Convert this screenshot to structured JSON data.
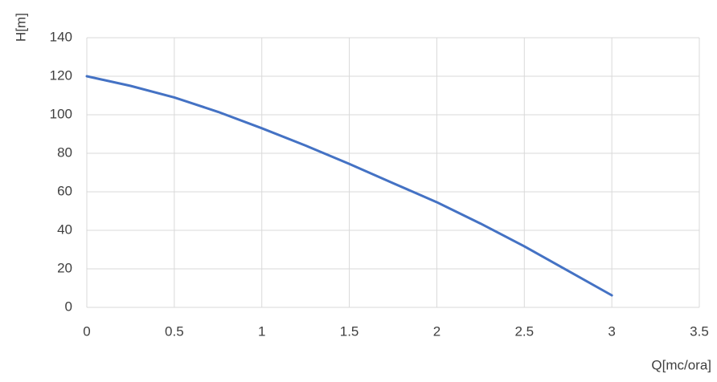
{
  "chart_data": {
    "type": "line",
    "y_label": "H[m]",
    "x_label": "Q[mc/ora]",
    "x": [
      0,
      0.25,
      0.5,
      0.75,
      1,
      1.25,
      1.5,
      1.75,
      2,
      2.25,
      2.5,
      2.75,
      3
    ],
    "series": [
      {
        "name": "H",
        "color": "#4472c4",
        "values": [
          120,
          115,
          109,
          101.5,
          93,
          84,
          74.5,
          64.5,
          54.6,
          43.5,
          31.7,
          19,
          6.25
        ]
      }
    ],
    "xlim": [
      0,
      3.5
    ],
    "xticks": [
      0,
      0.5,
      1,
      1.5,
      2,
      2.5,
      3,
      3.5
    ],
    "ylim": [
      0,
      140
    ],
    "yticks": [
      0,
      20,
      40,
      60,
      80,
      100,
      120,
      140
    ],
    "grid": true
  }
}
